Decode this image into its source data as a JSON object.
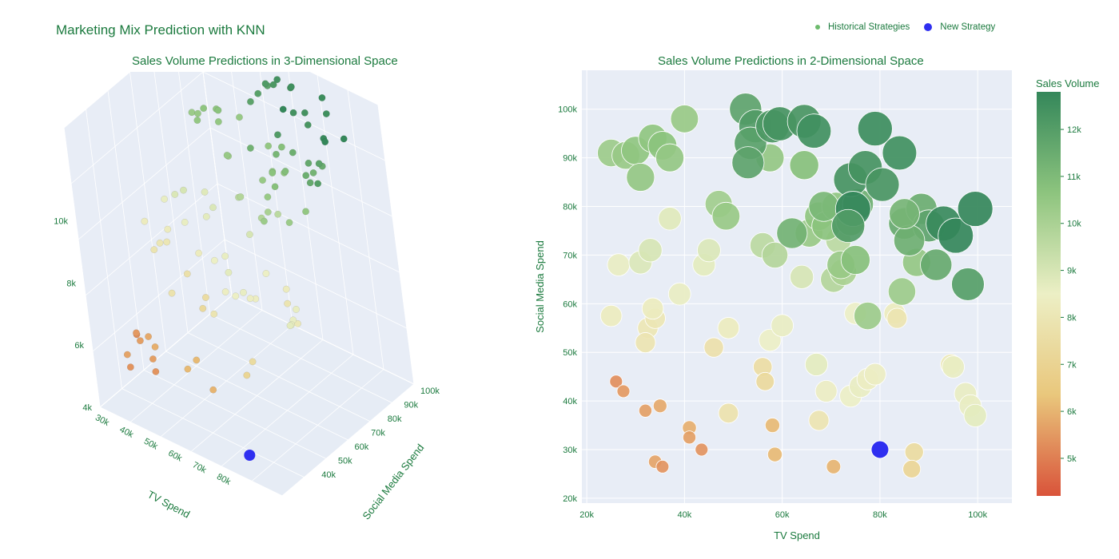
{
  "page": {
    "title": "Marketing Mix Prediction with KNN",
    "legend": [
      {
        "label": "Historical Strategies",
        "color": "#8cc87d",
        "icon": "small-dot-icon"
      },
      {
        "label": "New Strategy",
        "color": "#2f2ff0",
        "icon": "dot-icon"
      }
    ]
  },
  "colors": {
    "new_strategy": "#2f2ff0",
    "colorscale": [
      "#d9533a",
      "#e9c77c",
      "#ecefc5",
      "#8dc47e",
      "#34875a"
    ],
    "plot_bg": "#e8edf6",
    "text": "#1b7a3e"
  },
  "chart_data": [
    {
      "type": "scatter",
      "dimensions": 3,
      "title": "Sales Volume Predictions in 3-Dimensional Space",
      "xlabel": "TV Spend",
      "ylabel": "Social Media Spend",
      "zlabel": "",
      "x_ticks": [
        "30k",
        "40k",
        "50k",
        "60k",
        "70k",
        "80k"
      ],
      "y_ticks": [
        "40k",
        "50k",
        "60k",
        "70k",
        "80k",
        "90k",
        "100k"
      ],
      "z_ticks": [
        "4k",
        "6k",
        "8k",
        "10k"
      ],
      "xlim": [
        25000,
        100000
      ],
      "ylim": [
        20000,
        100000
      ],
      "zlim": [
        4000,
        13000
      ],
      "color_by": "Sales Volume",
      "new_strategy": {
        "tv": 80000,
        "social": 30000,
        "sales": 4100
      },
      "series_ref": "historical points shared with 2D chart; z = sales volume"
    },
    {
      "type": "scatter",
      "dimensions": 2,
      "title": "Sales Volume Predictions in 2-Dimensional Space",
      "xlabel": "TV Spend",
      "ylabel": "Social Media Spend",
      "x_ticks": [
        "20k",
        "40k",
        "60k",
        "80k",
        "100k"
      ],
      "y_ticks": [
        "20k",
        "30k",
        "40k",
        "50k",
        "60k",
        "70k",
        "80k",
        "90k",
        "100k"
      ],
      "xlim": [
        19000,
        107000
      ],
      "ylim": [
        19000,
        108000
      ],
      "colorbar": {
        "title": "Sales Volume",
        "ticks": [
          "5k",
          "6k",
          "7k",
          "8k",
          "9k",
          "10k",
          "11k",
          "12k"
        ],
        "range": [
          4200,
          12800
        ]
      },
      "series": [
        {
          "name": "Historical Strategies",
          "points": [
            [
              26000,
              44000,
              5300
            ],
            [
              27500,
              42000,
              5500
            ],
            [
              32000,
              38000,
              5600
            ],
            [
              35000,
              39000,
              5800
            ],
            [
              34000,
              27500,
              5700
            ],
            [
              35500,
              26500,
              5400
            ],
            [
              41000,
              34500,
              5900
            ],
            [
              41000,
              32500,
              5600
            ],
            [
              43500,
              30000,
              5400
            ],
            [
              58000,
              35000,
              6100
            ],
            [
              58500,
              29000,
              6100
            ],
            [
              70500,
              26500,
              6000
            ],
            [
              26500,
              68000,
              8600
            ],
            [
              31000,
              68500,
              8900
            ],
            [
              33000,
              71000,
              9000
            ],
            [
              37000,
              77500,
              8800
            ],
            [
              44000,
              68000,
              8700
            ],
            [
              45000,
              71000,
              8900
            ],
            [
              25000,
              57500,
              8300
            ],
            [
              32500,
              55000,
              8000
            ],
            [
              34000,
              57000,
              8000
            ],
            [
              33500,
              59000,
              8300
            ],
            [
              32000,
              52000,
              7900
            ],
            [
              39000,
              62000,
              8600
            ],
            [
              46000,
              51000,
              7700
            ],
            [
              49000,
              55000,
              8300
            ],
            [
              49000,
              37500,
              7800
            ],
            [
              56000,
              47000,
              7500
            ],
            [
              56500,
              44000,
              7300
            ],
            [
              57500,
              52500,
              8500
            ],
            [
              60000,
              55500,
              8600
            ],
            [
              67000,
              47500,
              8700
            ],
            [
              69000,
              42000,
              8400
            ],
            [
              67500,
              36000,
              7900
            ],
            [
              74000,
              41000,
              8500
            ],
            [
              76000,
              43000,
              8600
            ],
            [
              77500,
              44500,
              8400
            ],
            [
              79000,
              45500,
              8400
            ],
            [
              75000,
              58000,
              8500
            ],
            [
              83000,
              58000,
              8300
            ],
            [
              83500,
              57000,
              7900
            ],
            [
              87000,
              29500,
              7400
            ],
            [
              86500,
              26000,
              7100
            ],
            [
              94500,
              47500,
              8100
            ],
            [
              95000,
              47000,
              8600
            ],
            [
              97500,
              41500,
              8600
            ],
            [
              98500,
              39000,
              8600
            ],
            [
              99500,
              37000,
              8700
            ],
            [
              56000,
              72000,
              9600
            ],
            [
              58500,
              70000,
              9800
            ],
            [
              64000,
              65500,
              9000
            ],
            [
              70500,
              65000,
              9800
            ],
            [
              72500,
              66500,
              10000
            ],
            [
              71500,
              73000,
              9600
            ],
            [
              65500,
              74500,
              10400
            ],
            [
              67500,
              78000,
              10600
            ],
            [
              69000,
              76000,
              10700
            ],
            [
              71000,
              80000,
              10600
            ],
            [
              74000,
              77000,
              10900
            ],
            [
              72000,
              68000,
              10400
            ],
            [
              75000,
              69000,
              10800
            ],
            [
              77500,
              57500,
              10300
            ],
            [
              84500,
              62500,
              10300
            ],
            [
              87500,
              68500,
              10500
            ],
            [
              47000,
              80500,
              10200
            ],
            [
              48500,
              78000,
              10400
            ],
            [
              25000,
              91000,
              10300
            ],
            [
              28000,
              90500,
              10400
            ],
            [
              30000,
              91500,
              10600
            ],
            [
              31000,
              86000,
              10500
            ],
            [
              33500,
              94000,
              10600
            ],
            [
              35500,
              92500,
              10700
            ],
            [
              37000,
              90000,
              10500
            ],
            [
              40000,
              98000,
              10400
            ],
            [
              57500,
              90000,
              10500
            ],
            [
              64500,
              88500,
              10800
            ],
            [
              75500,
              80500,
              11400
            ],
            [
              85000,
              76500,
              11600
            ],
            [
              88500,
              79500,
              11500
            ],
            [
              90000,
              76000,
              11800
            ],
            [
              91500,
              68000,
              11600
            ],
            [
              98000,
              64000,
              12000
            ],
            [
              86000,
              73000,
              11400
            ],
            [
              62000,
              74500,
              11300
            ],
            [
              68500,
              80000,
              11100
            ],
            [
              52500,
              100000,
              11800
            ],
            [
              54500,
              96500,
              12100
            ],
            [
              53500,
              93000,
              11900
            ],
            [
              53000,
              89000,
              11800
            ],
            [
              58000,
              96500,
              12200
            ],
            [
              59500,
              97000,
              12400
            ],
            [
              64500,
              97500,
              12300
            ],
            [
              66500,
              95500,
              12500
            ],
            [
              74000,
              85500,
              12400
            ],
            [
              77000,
              88000,
              12400
            ],
            [
              80500,
              84500,
              12300
            ],
            [
              79000,
              96000,
              12600
            ],
            [
              84000,
              91000,
              12500
            ],
            [
              93000,
              76500,
              12700
            ],
            [
              95500,
              74000,
              12800
            ],
            [
              99500,
              79500,
              12800
            ],
            [
              74500,
              79500,
              12800
            ],
            [
              73500,
              76000,
              12100
            ],
            [
              85000,
              78500,
              11200
            ]
          ]
        },
        {
          "name": "New Strategy",
          "points": [
            [
              80000,
              30000,
              4100
            ]
          ]
        }
      ]
    }
  ]
}
